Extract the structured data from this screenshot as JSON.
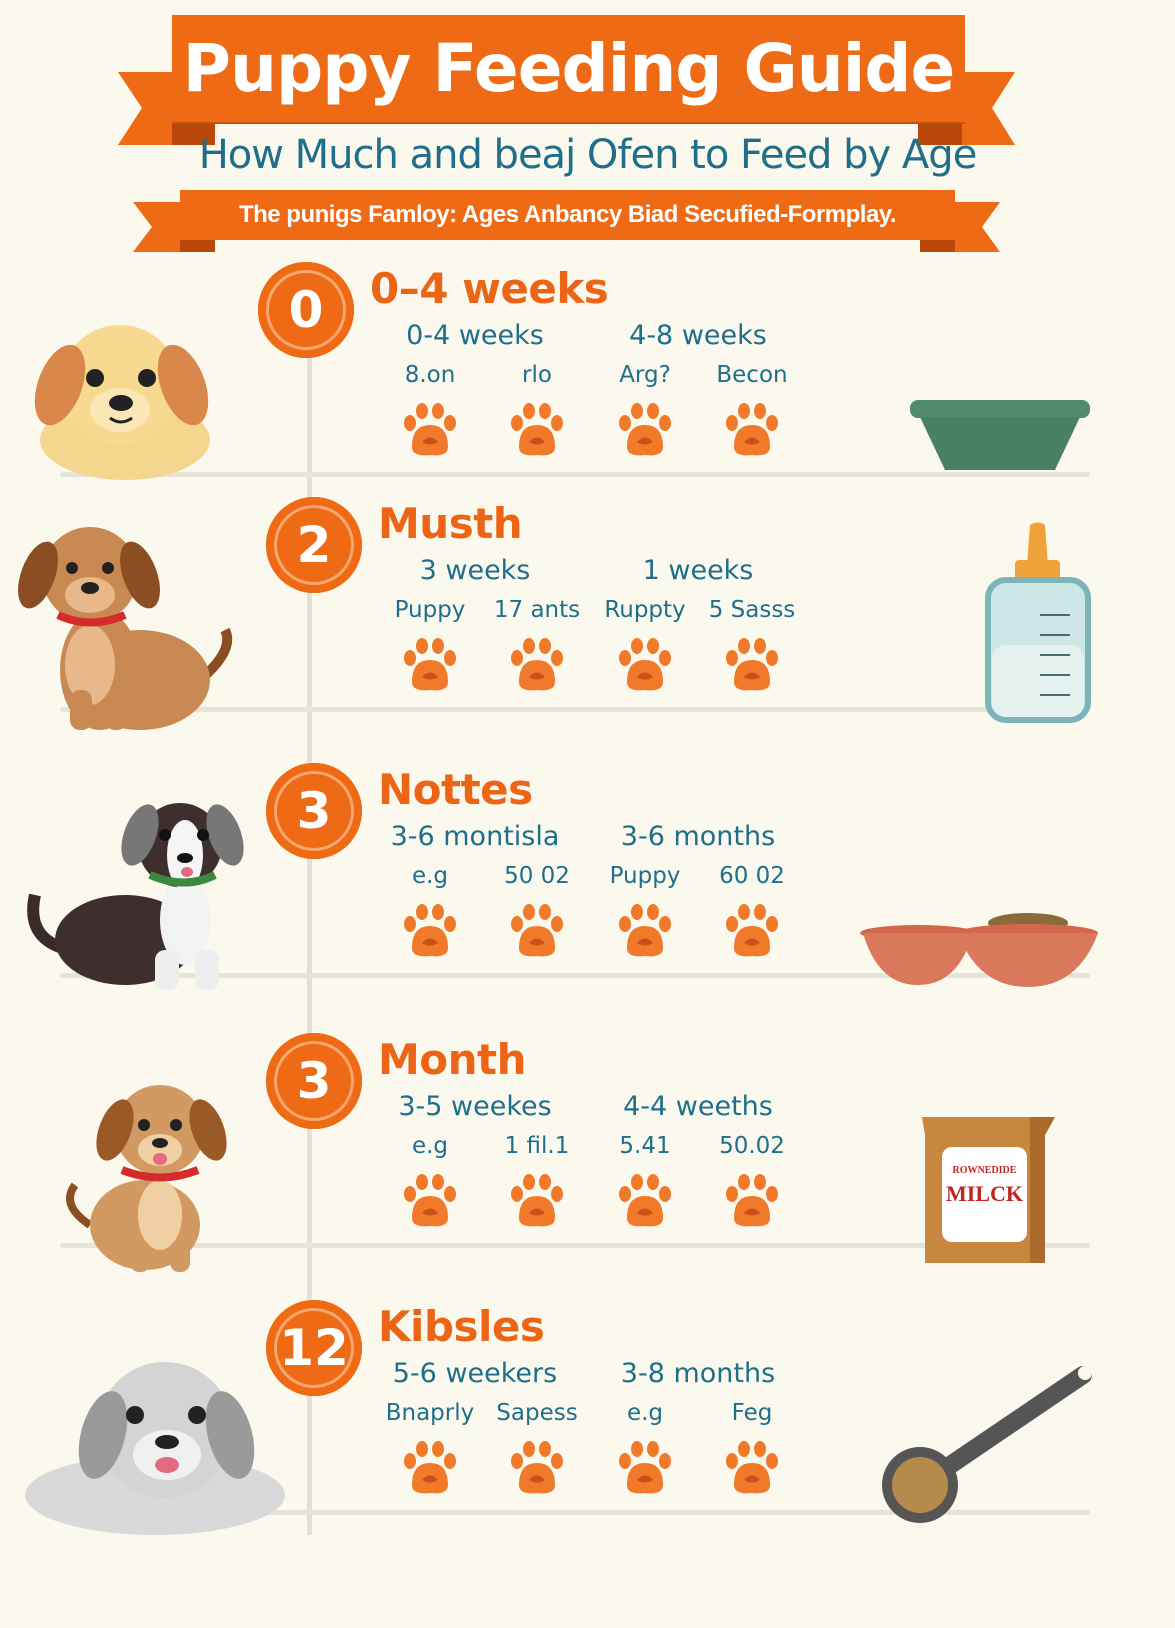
{
  "header": {
    "title": "Puppy Feeding Guide",
    "subtitle": "How Much and beaj Ofen to Feed by Age",
    "banner_text": "The punigs Famloy: Ages Anbancy Biad Secufied-Formplay."
  },
  "colors": {
    "accent_orange": "#ee6a15",
    "ribbon_dark": "#c9520b",
    "teal_text": "#1f6f8b",
    "background": "#fbf8ee",
    "paw": "#f07a2a"
  },
  "sections": [
    {
      "number": "0",
      "heading": "0–4 weeks",
      "columns": [
        "0-4 weeks",
        "4-8 weeks"
      ],
      "labels": [
        "8.on",
        "rlo",
        "Arg?",
        "Becon"
      ],
      "puppy": "golden-puppy",
      "item": "green-bowl-icon"
    },
    {
      "number": "2",
      "heading": "Musth",
      "columns": [
        "3 weeks",
        "1 weeks"
      ],
      "labels": [
        "Puppy",
        "17 ants",
        "Ruppty",
        "5 Sasss"
      ],
      "puppy": "brown-puppy-red-collar",
      "item": "baby-bottle-icon"
    },
    {
      "number": "3",
      "heading": "Nottes",
      "columns": [
        "3-6 montisla",
        "3-6 months"
      ],
      "labels": [
        "e.g",
        "50 02",
        "Puppy",
        "60 02"
      ],
      "puppy": "black-white-puppy",
      "item": "double-bowl-icon"
    },
    {
      "number": "3",
      "heading": "Month",
      "columns": [
        "3-5 weekes",
        "4-4 weeths"
      ],
      "labels": [
        "e.g",
        "1 fil.1",
        "5.41",
        "50.02"
      ],
      "puppy": "tan-puppy-red-collar",
      "item": "milk-bag-icon"
    },
    {
      "number": "12",
      "heading": "Kibsles",
      "columns": [
        "5-6 weekers",
        "3-8 months"
      ],
      "labels": [
        "Bnaprly",
        "Sapess",
        "e.g",
        "Feg"
      ],
      "puppy": "grey-puppy",
      "item": "measuring-scoop-icon"
    }
  ],
  "milk_bag": {
    "label": "MILCK",
    "brand": "ROWNEDIDE"
  }
}
